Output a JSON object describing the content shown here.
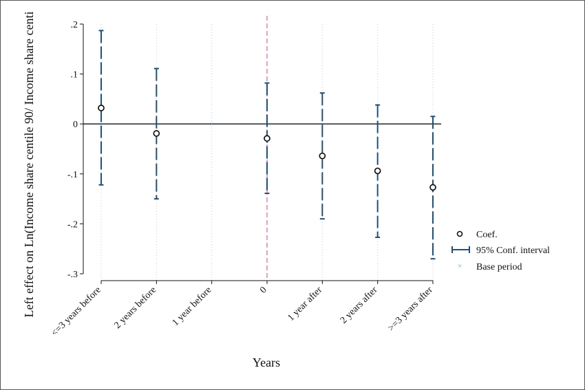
{
  "chart_data": {
    "type": "scatter",
    "subtype": "coefficient plot with confidence intervals",
    "categories": [
      "<=3 years before",
      "2 years before",
      "1 year before",
      "0",
      "1 year after",
      "2 years after",
      ">=3 years after"
    ],
    "coef": [
      0.032,
      -0.019,
      0.0,
      -0.029,
      -0.064,
      -0.094,
      -0.127
    ],
    "ci_low": [
      -0.122,
      -0.15,
      0.0,
      -0.139,
      -0.19,
      -0.227,
      -0.27
    ],
    "ci_high": [
      0.187,
      0.111,
      0.0,
      0.082,
      0.062,
      0.038,
      0.015
    ],
    "base_period_index": 2,
    "event_index": 3,
    "ylim": [
      -0.3,
      0.2
    ],
    "yticks": [
      0.2,
      0.1,
      0,
      -0.1,
      -0.2,
      -0.3
    ],
    "ytick_labels": [
      ".2",
      ".1",
      "0",
      "-.1",
      "-.2",
      "-.3"
    ],
    "ylabel": "Left effect on Ln(Income share centile 90/ Income share centi",
    "xlabel": "Years",
    "legend": {
      "position": "right",
      "entries": [
        "Coef.",
        "95% Conf. interval",
        "Base period"
      ]
    },
    "colors": {
      "ci": "#1f4e79",
      "coef_marker": "#111111",
      "base_marker": "#5aa9d6",
      "event_line": "#d88bb5",
      "zero_line": "#111111",
      "grid": "#c8c8c8"
    }
  }
}
